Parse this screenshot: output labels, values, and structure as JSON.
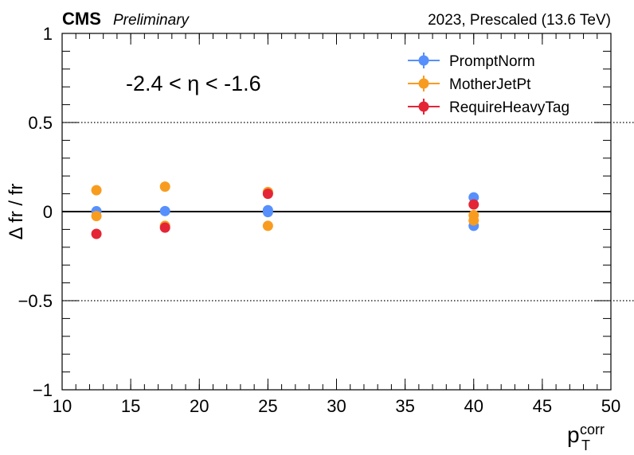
{
  "header": {
    "experiment": "CMS",
    "status": "Preliminary",
    "run_info": "2023, Prescaled (13.6 TeV)"
  },
  "region_label": "-2.4 < η < -1.6",
  "chart_data": {
    "type": "scatter",
    "title": "",
    "xlabel_main": "p",
    "xlabel_sub": "T",
    "xlabel_sup": "corr",
    "ylabel": "Δ fr / fr",
    "xlim": [
      10,
      50
    ],
    "ylim": [
      -1,
      1
    ],
    "x_ticks": [
      10,
      15,
      20,
      25,
      30,
      35,
      40,
      45,
      50
    ],
    "x_tick_labels": [
      "10",
      "15",
      "20",
      "25",
      "30",
      "35",
      "40",
      "45",
      "50"
    ],
    "y_ticks": [
      -1,
      -0.5,
      0,
      0.5,
      1
    ],
    "y_tick_labels": [
      "−1",
      "−0.5",
      "0",
      "0.5",
      "1"
    ],
    "reference_lines": [
      {
        "y": 0.5,
        "style": "dotted"
      },
      {
        "y": 0,
        "style": "solid"
      },
      {
        "y": -0.5,
        "style": "dotted"
      }
    ],
    "legend_position": "top-right",
    "series": [
      {
        "name": "PromptNorm",
        "color": "#5790fc",
        "x": [
          12.5,
          17.5,
          25,
          40
        ],
        "y": [
          0.002,
          0.003,
          0.008,
          0.08
        ]
      },
      {
        "name": "PromptNorm",
        "color": "#5790fc",
        "x": [
          25,
          40
        ],
        "y": [
          -0.003,
          -0.08
        ]
      },
      {
        "name": "MotherJetPt",
        "color": "#f89c20",
        "x": [
          12.5,
          17.5,
          25,
          40
        ],
        "y": [
          0.12,
          0.14,
          0.11,
          -0.02
        ]
      },
      {
        "name": "MotherJetPt",
        "color": "#f89c20",
        "x": [
          12.5,
          17.5,
          25,
          40
        ],
        "y": [
          -0.025,
          -0.08,
          -0.08,
          -0.05
        ]
      },
      {
        "name": "RequireHeavyTag",
        "color": "#e42536",
        "x": [
          12.5,
          17.5,
          25,
          40
        ],
        "y": [
          -0.125,
          -0.09,
          0.1,
          0.04
        ]
      }
    ],
    "legend": [
      {
        "name": "PromptNorm",
        "color": "#5790fc"
      },
      {
        "name": "MotherJetPt",
        "color": "#f89c20"
      },
      {
        "name": "RequireHeavyTag",
        "color": "#e42536"
      }
    ]
  }
}
